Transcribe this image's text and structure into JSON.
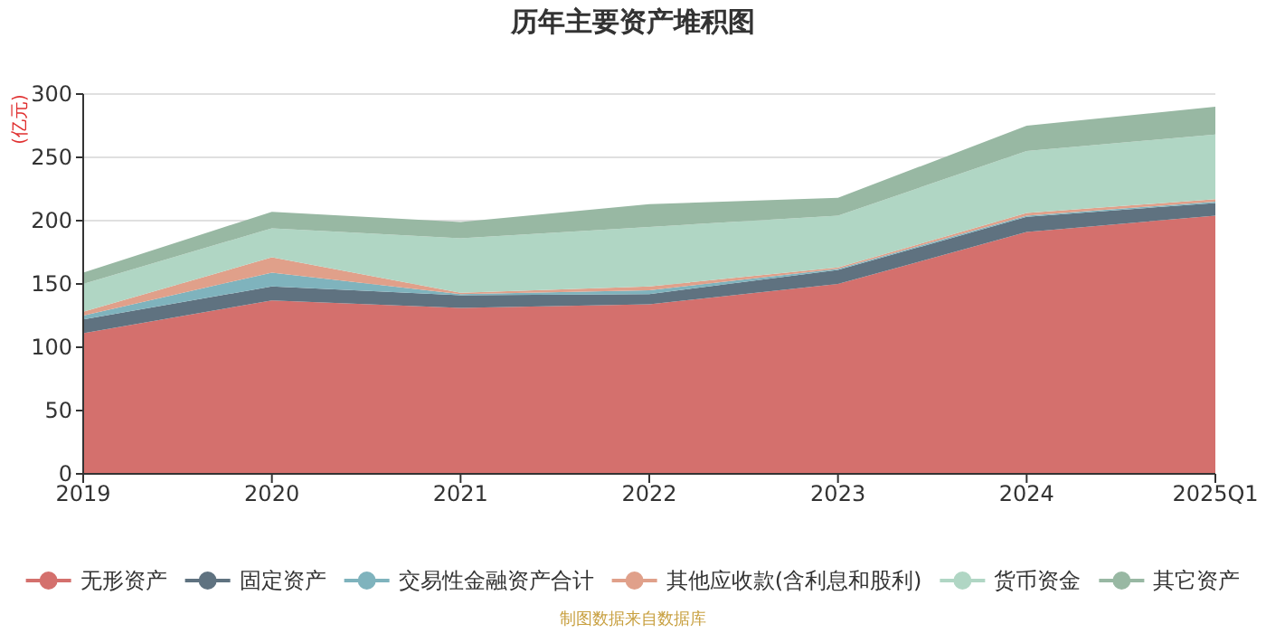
{
  "chart_data": {
    "type": "area",
    "stacked": true,
    "title": "历年主要资产堆积图",
    "ylabel": "(亿元)",
    "categories": [
      "2019",
      "2020",
      "2021",
      "2022",
      "2023",
      "2024",
      "2025Q1"
    ],
    "ylim": [
      0,
      300
    ],
    "yticks": [
      0,
      50,
      100,
      150,
      200,
      250,
      300
    ],
    "grid": "y",
    "legend": "bottom",
    "series": [
      {
        "name": "无形资产",
        "color": "#d4706d",
        "values": [
          111,
          137,
          131,
          134,
          150,
          191,
          204
        ]
      },
      {
        "name": "固定资产",
        "color": "#5f7280",
        "values": [
          11,
          11,
          10,
          8,
          11,
          12,
          10
        ]
      },
      {
        "name": "交易性金融资产合计",
        "color": "#7fb3bd",
        "values": [
          3,
          11,
          1,
          3,
          1,
          1,
          1
        ]
      },
      {
        "name": "其他应收款(含利息和股利)",
        "color": "#e0a08a",
        "values": [
          3,
          12,
          1,
          3,
          1,
          2,
          2
        ]
      },
      {
        "name": "货币资金",
        "color": "#b0d6c4",
        "values": [
          22,
          23,
          43,
          47,
          41,
          49,
          51
        ]
      },
      {
        "name": "其它资产",
        "color": "#98b8a3",
        "values": [
          9,
          13,
          13,
          18,
          14,
          20,
          22
        ]
      }
    ],
    "annotations": [
      "制图数据来自数据库"
    ]
  }
}
